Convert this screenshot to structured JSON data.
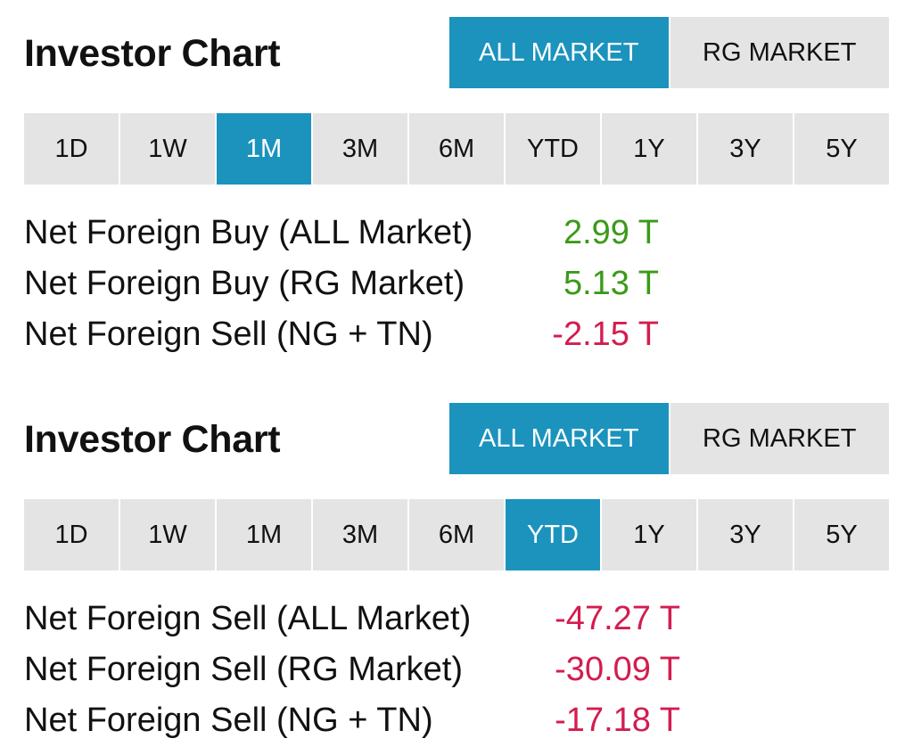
{
  "colors": {
    "accent": "#1b93bd",
    "inactive_bg": "#e4e4e4",
    "positive": "#3a9a18",
    "negative": "#d21d4f"
  },
  "panels": [
    {
      "title": "Investor Chart",
      "market_tabs": [
        {
          "label": "ALL MARKET",
          "active": true
        },
        {
          "label": "RG MARKET",
          "active": false
        }
      ],
      "period_tabs": [
        {
          "label": "1D",
          "active": false
        },
        {
          "label": "1W",
          "active": false
        },
        {
          "label": "1M",
          "active": true
        },
        {
          "label": "3M",
          "active": false
        },
        {
          "label": "6M",
          "active": false
        },
        {
          "label": "YTD",
          "active": false
        },
        {
          "label": "1Y",
          "active": false
        },
        {
          "label": "3Y",
          "active": false
        },
        {
          "label": "5Y",
          "active": false
        }
      ],
      "stats": [
        {
          "label": "Net Foreign Buy (ALL Market)",
          "value": "2.99 T",
          "sign": "pos"
        },
        {
          "label": "Net Foreign Buy (RG Market)",
          "value": "5.13 T",
          "sign": "pos"
        },
        {
          "label": "Net Foreign Sell (NG + TN)",
          "value": "-2.15 T",
          "sign": "neg"
        }
      ]
    },
    {
      "title": "Investor Chart",
      "market_tabs": [
        {
          "label": "ALL MARKET",
          "active": true
        },
        {
          "label": "RG MARKET",
          "active": false
        }
      ],
      "period_tabs": [
        {
          "label": "1D",
          "active": false
        },
        {
          "label": "1W",
          "active": false
        },
        {
          "label": "1M",
          "active": false
        },
        {
          "label": "3M",
          "active": false
        },
        {
          "label": "6M",
          "active": false
        },
        {
          "label": "YTD",
          "active": true
        },
        {
          "label": "1Y",
          "active": false
        },
        {
          "label": "3Y",
          "active": false
        },
        {
          "label": "5Y",
          "active": false
        }
      ],
      "stats": [
        {
          "label": "Net Foreign Sell (ALL Market)",
          "value": "-47.27 T",
          "sign": "neg"
        },
        {
          "label": "Net Foreign Sell (RG Market)",
          "value": "-30.09 T",
          "sign": "neg"
        },
        {
          "label": "Net Foreign Sell (NG + TN)",
          "value": "-17.18 T",
          "sign": "neg"
        }
      ]
    }
  ]
}
